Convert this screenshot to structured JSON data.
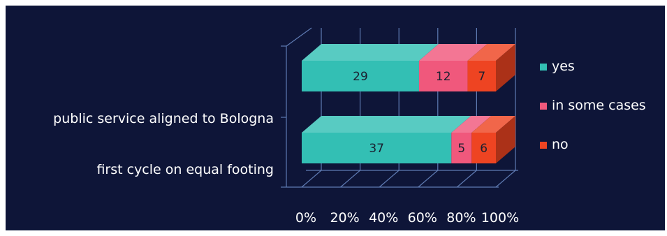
{
  "chart_data": {
    "type": "bar",
    "stacked": true,
    "normalized_percent": true,
    "orientation": "horizontal",
    "three_d": true,
    "categories": [
      "public service aligned to Bologna",
      "first cycle on  equal footing"
    ],
    "series": [
      {
        "name": "yes",
        "values": [
          29,
          37
        ],
        "color": "#33bfb4"
      },
      {
        "name": "in some cases",
        "values": [
          12,
          5
        ],
        "color": "#f0587c"
      },
      {
        "name": "no",
        "values": [
          7,
          6
        ],
        "color": "#ee4422"
      }
    ],
    "x_ticks": [
      "0%",
      "20%",
      "40%",
      "60%",
      "80%",
      "100%"
    ],
    "xlim": [
      0,
      100
    ],
    "grid": true,
    "legend": "right",
    "background": "#0e1538",
    "axis_color": "#5f7bb3",
    "text_color": "#ffffff"
  }
}
